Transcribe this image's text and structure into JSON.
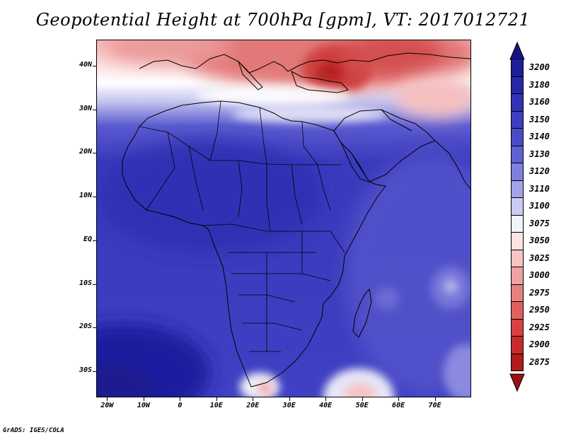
{
  "title": "Geopotential Height at 700hPa [gpm], VT: 2017012721",
  "footer": "GrADS: IGES/COLA",
  "map": {
    "region": "Africa",
    "lon_range": [
      -23,
      80
    ],
    "lat_range": [
      -36,
      46
    ],
    "lat_labels": [
      {
        "lat": 40,
        "text": "40N"
      },
      {
        "lat": 30,
        "text": "30N"
      },
      {
        "lat": 20,
        "text": "20N"
      },
      {
        "lat": 10,
        "text": "10N"
      },
      {
        "lat": 0,
        "text": "EQ"
      },
      {
        "lat": -10,
        "text": "10S"
      },
      {
        "lat": -20,
        "text": "20S"
      },
      {
        "lat": -30,
        "text": "30S"
      }
    ],
    "lon_labels": [
      {
        "lon": -20,
        "text": "20W"
      },
      {
        "lon": -10,
        "text": "10W"
      },
      {
        "lon": 0,
        "text": "0"
      },
      {
        "lon": 10,
        "text": "10E"
      },
      {
        "lon": 20,
        "text": "20E"
      },
      {
        "lon": 30,
        "text": "30E"
      },
      {
        "lon": 40,
        "text": "40E"
      },
      {
        "lon": 50,
        "text": "50E"
      },
      {
        "lon": 60,
        "text": "60E"
      },
      {
        "lon": 70,
        "text": "70E"
      }
    ]
  },
  "colorbar": {
    "levels": [
      {
        "label": "3200",
        "color": "#1e1e9c"
      },
      {
        "label": "3180",
        "color": "#2727a8"
      },
      {
        "label": "3160",
        "color": "#3232b5"
      },
      {
        "label": "3150",
        "color": "#3e3ec0"
      },
      {
        "label": "3140",
        "color": "#4b4bc9"
      },
      {
        "label": "3130",
        "color": "#6161d3"
      },
      {
        "label": "3120",
        "color": "#7f7fdd"
      },
      {
        "label": "3110",
        "color": "#a3a3e8"
      },
      {
        "label": "3100",
        "color": "#cacaf3"
      },
      {
        "label": "3075",
        "color": "#f2f2fc"
      },
      {
        "label": "3050",
        "color": "#fbe3e3"
      },
      {
        "label": "3025",
        "color": "#f6c4c4"
      },
      {
        "label": "3000",
        "color": "#efa2a2"
      },
      {
        "label": "2975",
        "color": "#e88080"
      },
      {
        "label": "2950",
        "color": "#e06060"
      },
      {
        "label": "2925",
        "color": "#d84141"
      },
      {
        "label": "2900",
        "color": "#c82a2a"
      },
      {
        "label": "2875",
        "color": "#b31a1a"
      }
    ],
    "top_color": "#141482",
    "bottom_color": "#9c1010"
  }
}
